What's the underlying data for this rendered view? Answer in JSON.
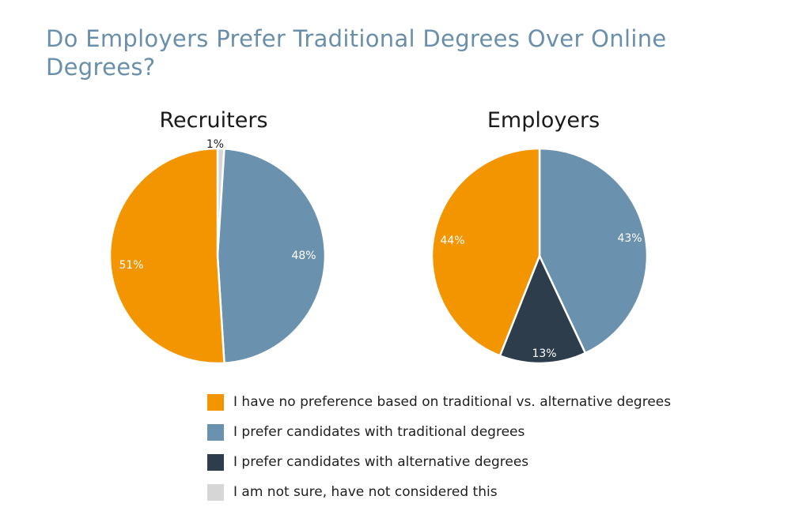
{
  "page": {
    "title": "Do Employers Prefer Traditional Degrees Over Online Degrees?"
  },
  "colors": {
    "orange": "#f29500",
    "blue": "#6a91ad",
    "dark": "#2e3d4c",
    "gray": "#d6d6d6"
  },
  "legend": [
    {
      "label": "I have no preference based on traditional vs. alternative degrees",
      "color": "#f29500"
    },
    {
      "label": "I prefer candidates with traditional degrees",
      "color": "#6a91ad"
    },
    {
      "label": "I prefer candidates with alternative degrees",
      "color": "#2e3d4c"
    },
    {
      "label": "I am not sure, have not considered this",
      "color": "#d6d6d6"
    }
  ],
  "chart_data": [
    {
      "type": "pie",
      "title": "Recruiters",
      "slices": [
        {
          "category": "I have no preference based on traditional vs. alternative degrees",
          "value": 51,
          "label": "51%",
          "color": "#f29500"
        },
        {
          "category": "I prefer candidates with traditional degrees",
          "value": 48,
          "label": "48%",
          "color": "#6a91ad"
        },
        {
          "category": "I am not sure, have not considered this",
          "value": 1,
          "label": "1%",
          "color": "#d6d6d6"
        }
      ]
    },
    {
      "type": "pie",
      "title": "Employers",
      "slices": [
        {
          "category": "I have no preference based on traditional vs. alternative degrees",
          "value": 44,
          "label": "44%",
          "color": "#f29500"
        },
        {
          "category": "I prefer candidates with traditional degrees",
          "value": 43,
          "label": "43%",
          "color": "#6a91ad"
        },
        {
          "category": "I prefer candidates with alternative degrees",
          "value": 13,
          "label": "13%",
          "color": "#2e3d4c"
        }
      ]
    }
  ]
}
